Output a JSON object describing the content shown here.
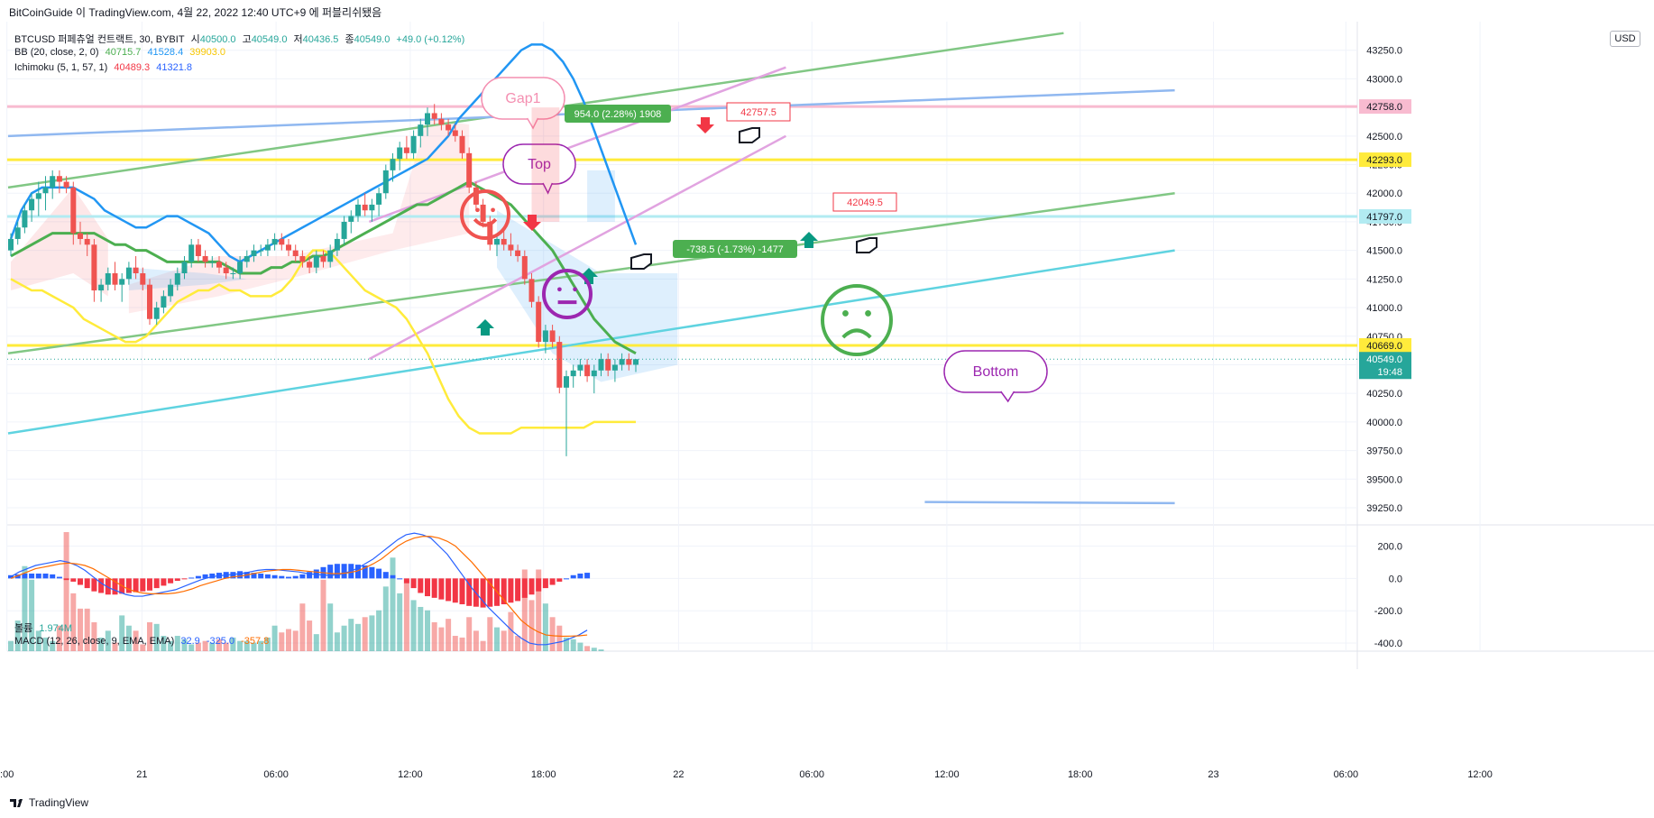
{
  "header": {
    "caption": "BitCoinGuide 이 TradingView.com, 4월 22, 2022 12:40 UTC+9 에 퍼블리쉬됐음"
  },
  "footer": {
    "brand": "TradingView"
  },
  "currency_button": "USD",
  "legends": {
    "symbol": "BTCUSD 퍼페츄얼 컨트랙트, 30, BYBIT",
    "ohlc": [
      {
        "label": "시",
        "value": "40500.0"
      },
      {
        "label": "고",
        "value": "40549.0"
      },
      {
        "label": "저",
        "value": "40436.5"
      },
      {
        "label": "종",
        "value": "40549.0"
      }
    ],
    "change": "+49.0 (+0.12%)",
    "bb": {
      "name": "BB (20, close, 2, 0)",
      "values": [
        "40715.7",
        "41528.4",
        "39903.0"
      ],
      "colors": [
        "#4caf50",
        "#2196f3",
        "#ffeb3b"
      ]
    },
    "ichimoku": {
      "name": "Ichimoku (5, 1, 57, 1)",
      "values": [
        "40489.3",
        "41321.8"
      ],
      "colors": [
        "#f23645",
        "#2962ff"
      ]
    },
    "volume": {
      "name": "볼륨",
      "value": "1.974M"
    },
    "macd": {
      "name": "MACD (12, 26, close, 9, EMA, EMA)",
      "values": [
        "32.9",
        "-325.0",
        "-357.8"
      ],
      "colors": [
        "#2962ff",
        "#2962ff",
        "#ff6d00"
      ]
    }
  },
  "colors": {
    "up": "#26a69a",
    "down": "#ef5350",
    "bb_mid": "#4caf50",
    "bb_up": "#2196f3",
    "bb_low": "#ffeb3b",
    "trend_green": "#81c784",
    "trend_blue": "#90b8f0",
    "trend_cyan": "#5fd3e0",
    "trend_pink": "#e1a3e0"
  },
  "chart_data": [
    {
      "type": "candlestick",
      "title": "BTCUSD 퍼페츄얼 컨트랙트, 30, BYBIT",
      "ylim": [
        39100,
        43500
      ],
      "y_ticks": [
        "43250.0",
        "43000.0",
        "42750.0",
        "42500.0",
        "42250.0",
        "42000.0",
        "41750.0",
        "41500.0",
        "41250.0",
        "41000.0",
        "40750.0",
        "40500.0",
        "40250.0",
        "40000.0",
        "39750.0",
        "39500.0",
        "39250.0"
      ],
      "x_ticks": [
        ":00",
        "21",
        "06:00",
        "12:00",
        "18:00",
        "22",
        "06:00",
        "12:00",
        "18:00",
        "23",
        "06:00",
        "12:00"
      ],
      "ohlc": [
        [
          41500,
          41650,
          41450,
          41600
        ],
        [
          41600,
          41750,
          41550,
          41700
        ],
        [
          41700,
          41900,
          41650,
          41850
        ],
        [
          41850,
          42000,
          41750,
          41950
        ],
        [
          41950,
          42100,
          41800,
          42000
        ],
        [
          42000,
          42150,
          41850,
          42050
        ],
        [
          42050,
          42200,
          41950,
          42150
        ],
        [
          42150,
          42200,
          42000,
          42100
        ],
        [
          42100,
          42150,
          42000,
          42050
        ],
        [
          42050,
          42100,
          41550,
          41650
        ],
        [
          41650,
          41750,
          41550,
          41600
        ],
        [
          41600,
          41650,
          41450,
          41550
        ],
        [
          41550,
          41600,
          41050,
          41150
        ],
        [
          41150,
          41250,
          41050,
          41200
        ],
        [
          41200,
          41350,
          41150,
          41300
        ],
        [
          41300,
          41400,
          41150,
          41200
        ],
        [
          41200,
          41300,
          41050,
          41250
        ],
        [
          41250,
          41400,
          41200,
          41350
        ],
        [
          41350,
          41450,
          41250,
          41300
        ],
        [
          41300,
          41350,
          41150,
          41200
        ],
        [
          41200,
          41250,
          40850,
          40900
        ],
        [
          40900,
          41050,
          40850,
          41000
        ],
        [
          41000,
          41150,
          40950,
          41100
        ],
        [
          41100,
          41250,
          41050,
          41200
        ],
        [
          41200,
          41350,
          41150,
          41300
        ],
        [
          41300,
          41450,
          41250,
          41400
        ],
        [
          41400,
          41600,
          41350,
          41550
        ],
        [
          41550,
          41600,
          41400,
          41450
        ],
        [
          41450,
          41500,
          41350,
          41400
        ],
        [
          41400,
          41450,
          41350,
          41400
        ],
        [
          41400,
          41450,
          41300,
          41350
        ],
        [
          41350,
          41400,
          41250,
          41300
        ],
        [
          41300,
          41350,
          41250,
          41300
        ],
        [
          41300,
          41450,
          41250,
          41400
        ],
        [
          41400,
          41500,
          41350,
          41450
        ],
        [
          41450,
          41550,
          41400,
          41500
        ],
        [
          41500,
          41550,
          41450,
          41500
        ],
        [
          41500,
          41600,
          41450,
          41550
        ],
        [
          41550,
          41650,
          41500,
          41600
        ],
        [
          41600,
          41650,
          41500,
          41550
        ],
        [
          41550,
          41600,
          41450,
          41500
        ],
        [
          41500,
          41550,
          41400,
          41450
        ],
        [
          41450,
          41500,
          41350,
          41400
        ],
        [
          41400,
          41450,
          41300,
          41350
        ],
        [
          41350,
          41500,
          41300,
          41450
        ],
        [
          41450,
          41500,
          41350,
          41400
        ],
        [
          41400,
          41550,
          41350,
          41500
        ],
        [
          41500,
          41650,
          41450,
          41600
        ],
        [
          41600,
          41800,
          41550,
          41750
        ],
        [
          41750,
          41850,
          41650,
          41800
        ],
        [
          41800,
          41950,
          41750,
          41900
        ],
        [
          41900,
          42000,
          41800,
          41850
        ],
        [
          41850,
          41950,
          41750,
          41900
        ],
        [
          41900,
          42050,
          41800,
          42000
        ],
        [
          42000,
          42250,
          41950,
          42200
        ],
        [
          42200,
          42350,
          42100,
          42300
        ],
        [
          42300,
          42450,
          42200,
          42400
        ],
        [
          42400,
          42500,
          42300,
          42350
        ],
        [
          42350,
          42550,
          42300,
          42500
        ],
        [
          42500,
          42650,
          42400,
          42600
        ],
        [
          42600,
          42750,
          42500,
          42700
        ],
        [
          42700,
          42780,
          42600,
          42650
        ],
        [
          42650,
          42700,
          42550,
          42600
        ],
        [
          42600,
          42650,
          42500,
          42550
        ],
        [
          42550,
          42600,
          42450,
          42500
        ],
        [
          42500,
          42550,
          42300,
          42350
        ],
        [
          42350,
          42400,
          42000,
          42050
        ],
        [
          42050,
          42100,
          41850,
          41900
        ],
        [
          41900,
          41950,
          41700,
          41750
        ],
        [
          41750,
          41800,
          41500,
          41550
        ],
        [
          41550,
          41650,
          41450,
          41600
        ],
        [
          41600,
          41700,
          41500,
          41550
        ],
        [
          41550,
          41650,
          41450,
          41500
        ],
        [
          41500,
          41550,
          41400,
          41450
        ],
        [
          41450,
          41500,
          41200,
          41250
        ],
        [
          41250,
          41300,
          41000,
          41050
        ],
        [
          41050,
          41100,
          40650,
          40700
        ],
        [
          40700,
          40850,
          40600,
          40800
        ],
        [
          40800,
          40850,
          40650,
          40700
        ],
        [
          40700,
          40750,
          40250,
          40300
        ],
        [
          40300,
          40450,
          39700,
          40400
        ],
        [
          40400,
          40500,
          40300,
          40450
        ],
        [
          40450,
          40550,
          40400,
          40500
        ],
        [
          40500,
          40550,
          40350,
          40400
        ],
        [
          40400,
          40500,
          40250,
          40450
        ],
        [
          40450,
          40600,
          40400,
          40550
        ],
        [
          40550,
          40600,
          40400,
          40450
        ],
        [
          40450,
          40550,
          40350,
          40500
        ],
        [
          40500,
          40600,
          40450,
          40550
        ],
        [
          40550,
          40600,
          40450,
          40500
        ],
        [
          40500,
          40550,
          40436.5,
          40549
        ]
      ],
      "bb_upper": [
        41600,
        41850,
        42000,
        42050,
        42050,
        42050,
        42050,
        42000,
        41950,
        41850,
        41800,
        41750,
        41700,
        41700,
        41750,
        41800,
        41800,
        41750,
        41700,
        41650,
        41550,
        41450,
        41400,
        41450,
        41500,
        41550,
        41600,
        41650,
        41700,
        41750,
        41800,
        41850,
        41900,
        41950,
        42000,
        42050,
        42100,
        42150,
        42200,
        42250,
        42300,
        42400,
        42500,
        42650,
        42750,
        42850,
        42950,
        43050,
        43150,
        43250,
        43300,
        43300,
        43250,
        43150,
        43000,
        42800,
        42550,
        42300,
        42050,
        41800,
        41550
      ],
      "bb_mid": [
        41450,
        41500,
        41550,
        41600,
        41650,
        41650,
        41650,
        41650,
        41650,
        41600,
        41550,
        41550,
        41500,
        41500,
        41450,
        41400,
        41400,
        41400,
        41400,
        41400,
        41400,
        41350,
        41300,
        41300,
        41300,
        41350,
        41350,
        41400,
        41400,
        41450,
        41450,
        41500,
        41550,
        41600,
        41650,
        41700,
        41750,
        41800,
        41850,
        41900,
        41900,
        41950,
        42000,
        42050,
        42100,
        42050,
        42000,
        41950,
        41900,
        41800,
        41700,
        41600,
        41500,
        41350,
        41200,
        41050,
        40900,
        40800,
        40700,
        40650,
        40600
      ],
      "bb_lower": [
        41250,
        41200,
        41150,
        41150,
        41100,
        41050,
        41000,
        40900,
        40850,
        40800,
        40750,
        40700,
        40700,
        40750,
        40850,
        40950,
        41050,
        41100,
        41150,
        41150,
        41200,
        41150,
        41150,
        41100,
        41100,
        41100,
        41150,
        41250,
        41400,
        41500,
        41500,
        41450,
        41350,
        41250,
        41150,
        41100,
        41050,
        41000,
        40900,
        40750,
        40600,
        40400,
        40200,
        40050,
        39950,
        39900,
        39900,
        39900,
        39900,
        39950,
        39950,
        39950,
        39950,
        39950,
        39950,
        39950,
        40000,
        40000,
        40000,
        40000,
        40000
      ],
      "trendlines": [
        {
          "name": "green-upper",
          "color": "#81c784",
          "p1": [
            "00:00",
            42050
          ],
          "p2": [
            "23 04:00",
            43400
          ]
        },
        {
          "name": "green-lower",
          "color": "#81c784",
          "p1": [
            "00:00",
            40600
          ],
          "p2": [
            "23 12:00",
            42000
          ]
        },
        {
          "name": "blue-upper",
          "color": "#90b8f0",
          "p1": [
            "00:00",
            42500
          ],
          "p2": [
            "23 12:00",
            42900
          ]
        },
        {
          "name": "cyan",
          "color": "#5fd3e0",
          "p1": [
            "00:00",
            39900
          ],
          "p2": [
            "23 12:00",
            41500
          ]
        },
        {
          "name": "pink-upper",
          "color": "#e1a3e0",
          "p1": [
            "21 02:00",
            41750
          ],
          "p2": [
            "22 08:00",
            43100
          ]
        },
        {
          "name": "pink-lower",
          "color": "#e1a3e0",
          "p1": [
            "21 02:00",
            40550
          ],
          "p2": [
            "22 08:00",
            42500
          ]
        },
        {
          "name": "blue-bottom",
          "color": "#90b8f0",
          "p1": [
            "22 18:00",
            39300
          ],
          "p2": [
            "23 12:00",
            39290
          ]
        }
      ],
      "horizontal_levels": [
        {
          "value": "42758.0",
          "color": "#f8bbd0"
        },
        {
          "value": "42293.0",
          "color": "#ffeb3b"
        },
        {
          "value": "41797.0",
          "color": "#b2ebf2"
        },
        {
          "value": "40669.0",
          "color": "#ffeb3b"
        }
      ],
      "last_price": {
        "value": "40549.0",
        "countdown": "19:48"
      },
      "annotations": {
        "gap1": "Gap1",
        "top": "Top",
        "bottom": "Bottom",
        "measure_up": "954.0 (2.28%) 1908",
        "measure_down": "-738.5 (-1.73%) -1477",
        "price_note_1": "42757.5",
        "price_note_2": "42049.5"
      }
    },
    {
      "type": "bar",
      "title": "볼륨 / MACD (12, 26, close, 9, EMA, EMA)",
      "y_ticks": [
        "200.0",
        "0.0",
        "-200.0",
        "-400.0"
      ],
      "ylim": [
        -450,
        320
      ],
      "macd_hist": [
        20,
        25,
        30,
        30,
        30,
        30,
        25,
        10,
        -10,
        -20,
        -40,
        -60,
        -80,
        -90,
        -100,
        -100,
        -95,
        -90,
        -85,
        -80,
        -75,
        -60,
        -45,
        -30,
        -15,
        -5,
        5,
        15,
        25,
        30,
        35,
        40,
        40,
        45,
        40,
        35,
        30,
        25,
        20,
        15,
        10,
        15,
        25,
        40,
        55,
        70,
        85,
        90,
        90,
        90,
        85,
        80,
        70,
        60,
        40,
        20,
        0,
        -30,
        -60,
        -90,
        -110,
        -120,
        -130,
        -140,
        -150,
        -160,
        -170,
        -175,
        -180,
        -175,
        -170,
        -160,
        -150,
        -140,
        -120,
        -100,
        -80,
        -60,
        -40,
        -20,
        0,
        20,
        30,
        35
      ],
      "macd_line": [
        10,
        40,
        60,
        80,
        90,
        100,
        110,
        100,
        80,
        50,
        10,
        -30,
        -60,
        -80,
        -100,
        -110,
        -110,
        -100,
        -90,
        -80,
        -70,
        -50,
        -30,
        -10,
        5,
        15,
        20,
        25,
        30,
        40,
        50,
        55,
        55,
        50,
        45,
        40,
        30,
        25,
        20,
        20,
        25,
        40,
        60,
        90,
        120,
        160,
        200,
        240,
        270,
        280,
        270,
        250,
        200,
        150,
        80,
        10,
        -60,
        -120,
        -180,
        -230,
        -280,
        -330,
        -370,
        -400,
        -410,
        -410,
        -400,
        -390,
        -370,
        -350,
        -320
      ],
      "signal_line": [
        0,
        20,
        40,
        60,
        70,
        80,
        90,
        95,
        90,
        80,
        60,
        30,
        0,
        -30,
        -60,
        -80,
        -90,
        -95,
        -95,
        -95,
        -90,
        -80,
        -65,
        -45,
        -30,
        -15,
        0,
        10,
        15,
        25,
        35,
        45,
        50,
        55,
        55,
        50,
        45,
        40,
        35,
        30,
        30,
        35,
        45,
        65,
        90,
        120,
        160,
        200,
        230,
        250,
        260,
        260,
        250,
        230,
        200,
        150,
        100,
        40,
        -20,
        -80,
        -140,
        -200,
        -260,
        -300,
        -330,
        -350,
        -355,
        -358,
        -357,
        -355,
        -350
      ],
      "volume": [
        60,
        180,
        500,
        420,
        120,
        80,
        60,
        150,
        700,
        340,
        250,
        250,
        170,
        80,
        120,
        50,
        210,
        150,
        120,
        40,
        170,
        160,
        90,
        60,
        90,
        70,
        40,
        50,
        60,
        50,
        70,
        50,
        80,
        60,
        60,
        50,
        60,
        80,
        150,
        110,
        130,
        120,
        280,
        180,
        100,
        420,
        280,
        110,
        150,
        190,
        160,
        200,
        210,
        240,
        380,
        550,
        340,
        400,
        300,
        260,
        240,
        170,
        140,
        190,
        90,
        80,
        200,
        120,
        60,
        200,
        140,
        120,
        230,
        90,
        480,
        300,
        480,
        280,
        200,
        150,
        80,
        70,
        50,
        30,
        20,
        10
      ]
    }
  ]
}
